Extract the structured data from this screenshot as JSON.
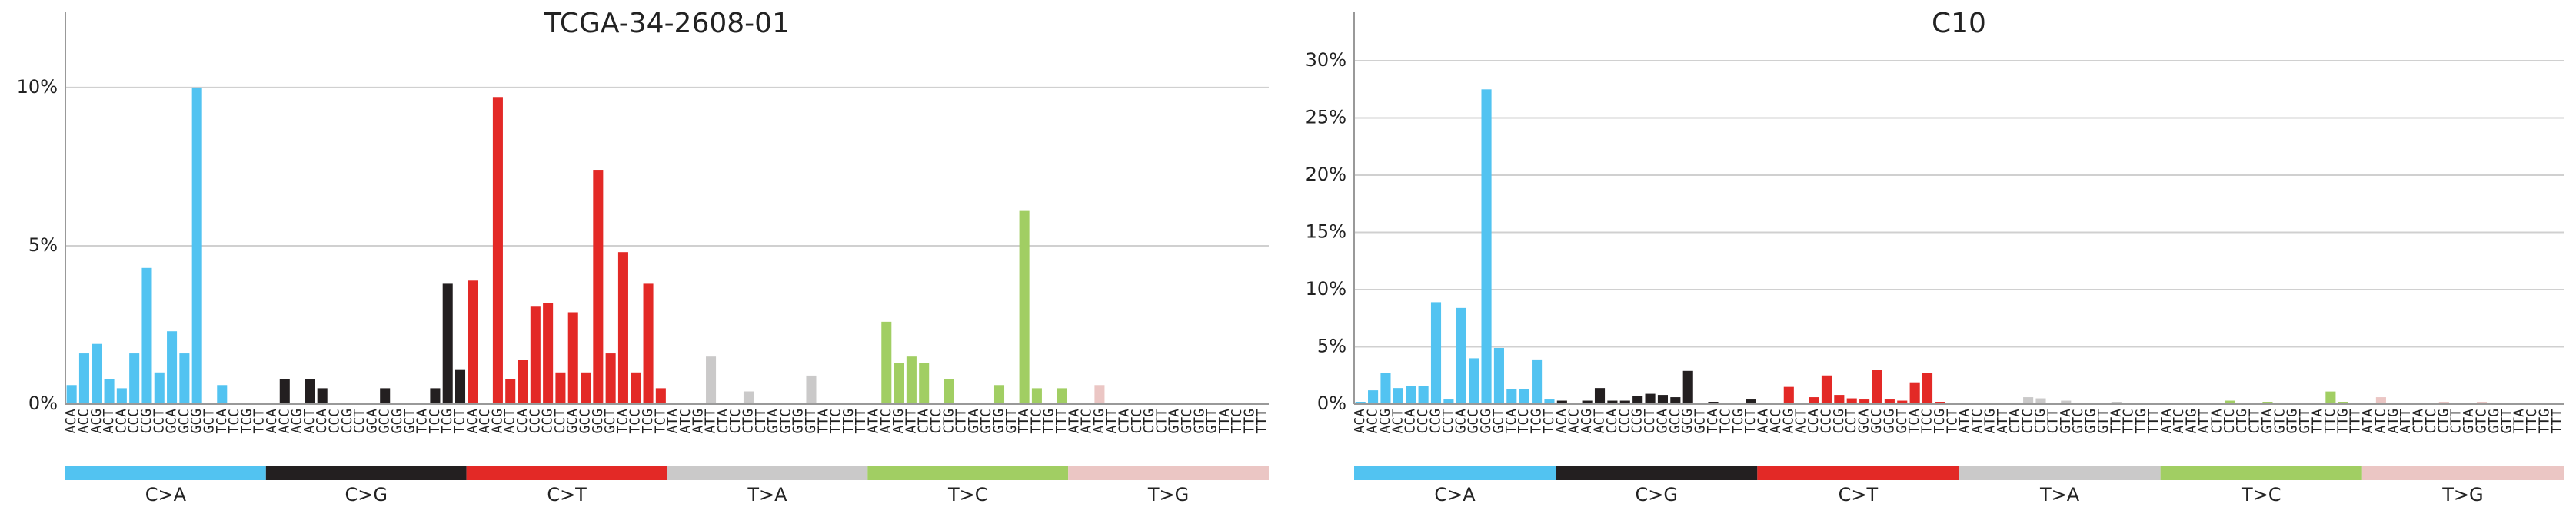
{
  "chart_data": [
    {
      "type": "bar",
      "title": "TCGA-34-2608-01",
      "categories": [
        "ACA",
        "ACC",
        "ACG",
        "ACT",
        "CCA",
        "CCC",
        "CCG",
        "CCT",
        "GCA",
        "GCC",
        "GCG",
        "GCT",
        "TCA",
        "TCC",
        "TCG",
        "TCT",
        "ACA",
        "ACC",
        "ACG",
        "ACT",
        "CCA",
        "CCC",
        "CCG",
        "CCT",
        "GCA",
        "GCC",
        "GCG",
        "GCT",
        "TCA",
        "TCC",
        "TCG",
        "TCT",
        "ACA",
        "ACC",
        "ACG",
        "ACT",
        "CCA",
        "CCC",
        "CCG",
        "CCT",
        "GCA",
        "GCC",
        "GCG",
        "GCT",
        "TCA",
        "TCC",
        "TCG",
        "TCT",
        "ATA",
        "ATC",
        "ATG",
        "ATT",
        "CTA",
        "CTC",
        "CTG",
        "CTT",
        "GTA",
        "GTC",
        "GTG",
        "GTT",
        "TTA",
        "TTC",
        "TTG",
        "TTT",
        "ATA",
        "ATC",
        "ATG",
        "ATT",
        "CTA",
        "CTC",
        "CTG",
        "CTT",
        "GTA",
        "GTC",
        "GTG",
        "GTT",
        "TTA",
        "TTC",
        "TTG",
        "TTT",
        "ATA",
        "ATC",
        "ATG",
        "ATT",
        "CTA",
        "CTC",
        "CTG",
        "CTT",
        "GTA",
        "GTC",
        "GTG",
        "GTT",
        "TTA",
        "TTC",
        "TTG",
        "TTT"
      ],
      "values": [
        0.6,
        1.6,
        1.9,
        0.8,
        0.5,
        1.6,
        4.3,
        1.0,
        2.3,
        1.6,
        10.0,
        0,
        0.6,
        0,
        0,
        0,
        0,
        0.8,
        0,
        0.8,
        0.5,
        0,
        0,
        0,
        0,
        0.5,
        0,
        0,
        0,
        0.5,
        3.8,
        1.1,
        3.9,
        0,
        9.7,
        0.8,
        1.4,
        3.1,
        3.2,
        1.0,
        2.9,
        1.0,
        7.4,
        1.6,
        4.8,
        1.0,
        3.8,
        0.5,
        0,
        0,
        0,
        1.5,
        0,
        0,
        0.4,
        0,
        0,
        0,
        0,
        0.9,
        0,
        0,
        0,
        0,
        0,
        2.6,
        1.3,
        1.5,
        1.3,
        0,
        0.8,
        0,
        0,
        0,
        0.6,
        0,
        6.1,
        0.5,
        0,
        0.5,
        0,
        0,
        0.6,
        0,
        0,
        0,
        0,
        0,
        0,
        0,
        0,
        0,
        0,
        0,
        0,
        0
      ],
      "groups": [
        {
          "name": "C>A",
          "color": "#52c3f1"
        },
        {
          "name": "C>G",
          "color": "#231f20"
        },
        {
          "name": "C>T",
          "color": "#e32926"
        },
        {
          "name": "T>A",
          "color": "#cac9c9"
        },
        {
          "name": "T>C",
          "color": "#a1ce63"
        },
        {
          "name": "T>G",
          "color": "#ebc6c4"
        }
      ],
      "ylim": [
        0,
        12.4
      ],
      "yticks": [
        {
          "value": 0,
          "label": "0%"
        },
        {
          "value": 5,
          "label": "5%"
        },
        {
          "value": 10,
          "label": "10%"
        }
      ],
      "grid": true
    },
    {
      "type": "bar",
      "title": "C10",
      "categories": [
        "ACA",
        "ACC",
        "ACG",
        "ACT",
        "CCA",
        "CCC",
        "CCG",
        "CCT",
        "GCA",
        "GCC",
        "GCG",
        "GCT",
        "TCA",
        "TCC",
        "TCG",
        "TCT",
        "ACA",
        "ACC",
        "ACG",
        "ACT",
        "CCA",
        "CCC",
        "CCG",
        "CCT",
        "GCA",
        "GCC",
        "GCG",
        "GCT",
        "TCA",
        "TCC",
        "TCG",
        "TCT",
        "ACA",
        "ACC",
        "ACG",
        "ACT",
        "CCA",
        "CCC",
        "CCG",
        "CCT",
        "GCA",
        "GCC",
        "GCG",
        "GCT",
        "TCA",
        "TCC",
        "TCG",
        "TCT",
        "ATA",
        "ATC",
        "ATG",
        "ATT",
        "CTA",
        "CTC",
        "CTG",
        "CTT",
        "GTA",
        "GTC",
        "GTG",
        "GTT",
        "TTA",
        "TTC",
        "TTG",
        "TTT",
        "ATA",
        "ATC",
        "ATG",
        "ATT",
        "CTA",
        "CTC",
        "CTG",
        "CTT",
        "GTA",
        "GTC",
        "GTG",
        "GTT",
        "TTA",
        "TTC",
        "TTG",
        "TTT",
        "ATA",
        "ATC",
        "ATG",
        "ATT",
        "CTA",
        "CTC",
        "CTG",
        "CTT",
        "GTA",
        "GTC",
        "GTG",
        "GTT",
        "TTA",
        "TTC",
        "TTG",
        "TTT"
      ],
      "values": [
        0.2,
        1.2,
        2.7,
        1.4,
        1.6,
        1.6,
        8.9,
        0.4,
        8.4,
        4.0,
        27.5,
        4.9,
        1.3,
        1.3,
        3.9,
        0.4,
        0.3,
        0,
        0.3,
        1.4,
        0.3,
        0.3,
        0.7,
        0.9,
        0.8,
        0.6,
        2.9,
        0,
        0.2,
        0,
        0.1,
        0.4,
        0,
        0,
        1.5,
        0,
        0.6,
        2.5,
        0.8,
        0.5,
        0.4,
        3.0,
        0.4,
        0.3,
        1.9,
        2.7,
        0.2,
        0,
        0,
        0,
        0,
        0.1,
        0,
        0.6,
        0.5,
        0,
        0.3,
        0,
        0,
        0,
        0.2,
        0,
        0.1,
        0,
        0,
        0,
        0,
        0,
        0,
        0.3,
        0,
        0,
        0.2,
        0,
        0.1,
        0,
        0,
        1.1,
        0.2,
        0,
        0,
        0.6,
        0,
        0,
        0,
        0,
        0.2,
        0.1,
        0.1,
        0.2,
        0,
        0.1,
        0,
        0,
        0,
        0
      ],
      "groups": [
        {
          "name": "C>A",
          "color": "#52c3f1"
        },
        {
          "name": "C>G",
          "color": "#231f20"
        },
        {
          "name": "C>T",
          "color": "#e32926"
        },
        {
          "name": "T>A",
          "color": "#cac9c9"
        },
        {
          "name": "T>C",
          "color": "#a1ce63"
        },
        {
          "name": "T>G",
          "color": "#ebc6c4"
        }
      ],
      "ylim": [
        0,
        34.3
      ],
      "yticks": [
        {
          "value": 0,
          "label": "0%"
        },
        {
          "value": 5,
          "label": "5%"
        },
        {
          "value": 10,
          "label": "10%"
        },
        {
          "value": 15,
          "label": "15%"
        },
        {
          "value": 20,
          "label": "20%"
        },
        {
          "value": 25,
          "label": "25%"
        },
        {
          "value": 30,
          "label": "30%"
        }
      ],
      "grid": true
    }
  ]
}
